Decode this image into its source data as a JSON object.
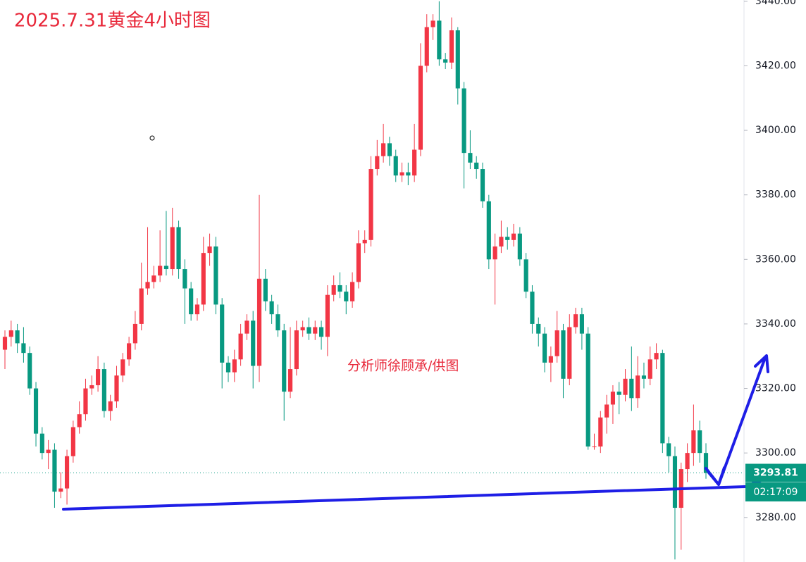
{
  "chart_data": {
    "type": "candlestick",
    "title": "2025.7.31黄金4小时图",
    "watermark": "分析师徐顾承/供图",
    "up_color": "#f23645",
    "down_color": "#089981",
    "ylim": [
      3266.2,
      3440.4
    ],
    "yticks": [
      {
        "value": 3280,
        "label": "3280.00"
      },
      {
        "value": 3300,
        "label": "3300.00"
      },
      {
        "value": 3320,
        "label": "3320.00"
      },
      {
        "value": 3340,
        "label": "3340.00"
      },
      {
        "value": 3360,
        "label": "3360.00"
      },
      {
        "value": 3380,
        "label": "3380.00"
      },
      {
        "value": 3400,
        "label": "3400.00"
      },
      {
        "value": 3420,
        "label": "3420.00"
      },
      {
        "value": 3440,
        "label": "3440.00"
      }
    ],
    "last_price": 3293.81,
    "countdown": "02:17:09",
    "candles": [
      [
        3332,
        3338,
        3326,
        3336
      ],
      [
        3336,
        3341,
        3333,
        3338
      ],
      [
        3338,
        3340,
        3331,
        3334
      ],
      [
        3334,
        3339,
        3328,
        3331
      ],
      [
        3331,
        3333,
        3318,
        3320
      ],
      [
        3320,
        3322,
        3302,
        3306
      ],
      [
        3306,
        3308,
        3298,
        3300
      ],
      [
        3300,
        3304,
        3295,
        3301
      ],
      [
        3301,
        3303,
        3283,
        3288
      ],
      [
        3288,
        3294,
        3286,
        3289
      ],
      [
        3289,
        3301,
        3284,
        3299
      ],
      [
        3299,
        3310,
        3297,
        3308
      ],
      [
        3308,
        3316,
        3306,
        3312
      ],
      [
        3312,
        3323,
        3310,
        3320
      ],
      [
        3320,
        3324,
        3318,
        3321
      ],
      [
        3321,
        3330,
        3319,
        3326
      ],
      [
        3326,
        3328,
        3311,
        3313
      ],
      [
        3313,
        3318,
        3310,
        3316
      ],
      [
        3316,
        3327,
        3314,
        3324
      ],
      [
        3324,
        3331,
        3322,
        3329
      ],
      [
        3329,
        3336,
        3327,
        3334
      ],
      [
        3334,
        3344,
        3332,
        3340
      ],
      [
        3340,
        3359,
        3338,
        3351
      ],
      [
        3351,
        3370,
        3349,
        3353
      ],
      [
        3353,
        3358,
        3351,
        3355
      ],
      [
        3355,
        3369,
        3353,
        3358
      ],
      [
        3358,
        3375,
        3355,
        3357
      ],
      [
        3357,
        3376,
        3355,
        3370
      ],
      [
        3370,
        3372,
        3354,
        3357
      ],
      [
        3357,
        3360,
        3340,
        3351
      ],
      [
        3351,
        3353,
        3341,
        3343
      ],
      [
        3343,
        3348,
        3341,
        3346
      ],
      [
        3346,
        3367,
        3344,
        3362
      ],
      [
        3362,
        3368,
        3358,
        3364
      ],
      [
        3364,
        3367,
        3343,
        3346
      ],
      [
        3346,
        3348,
        3320,
        3328
      ],
      [
        3328,
        3330,
        3322,
        3325
      ],
      [
        3325,
        3332,
        3322,
        3329
      ],
      [
        3329,
        3340,
        3327,
        3337
      ],
      [
        3337,
        3343,
        3335,
        3341
      ],
      [
        3341,
        3344,
        3320,
        3327
      ],
      [
        3327,
        3380,
        3322,
        3354
      ],
      [
        3354,
        3357,
        3344,
        3347
      ],
      [
        3347,
        3349,
        3340,
        3343
      ],
      [
        3343,
        3346,
        3336,
        3338
      ],
      [
        3338,
        3340,
        3310,
        3319
      ],
      [
        3319,
        3339,
        3317,
        3326
      ],
      [
        3326,
        3341,
        3324,
        3338
      ],
      [
        3338,
        3341,
        3336,
        3339
      ],
      [
        3339,
        3342,
        3335,
        3337
      ],
      [
        3337,
        3341,
        3335,
        3339
      ],
      [
        3339,
        3341,
        3332,
        3336
      ],
      [
        3336,
        3352,
        3330,
        3349
      ],
      [
        3349,
        3355,
        3347,
        3352
      ],
      [
        3352,
        3356,
        3348,
        3350
      ],
      [
        3350,
        3352,
        3343,
        3347
      ],
      [
        3347,
        3356,
        3345,
        3353
      ],
      [
        3353,
        3369,
        3351,
        3365
      ],
      [
        3365,
        3369,
        3362,
        3366
      ],
      [
        3366,
        3392,
        3364,
        3388
      ],
      [
        3388,
        3397,
        3386,
        3392
      ],
      [
        3392,
        3402,
        3390,
        3396
      ],
      [
        3396,
        3398,
        3389,
        3392
      ],
      [
        3392,
        3394,
        3384,
        3386
      ],
      [
        3386,
        3390,
        3384,
        3387
      ],
      [
        3387,
        3390,
        3383,
        3386
      ],
      [
        3386,
        3402,
        3384,
        3394
      ],
      [
        3394,
        3427,
        3392,
        3420
      ],
      [
        3420,
        3436,
        3418,
        3432
      ],
      [
        3432,
        3436,
        3428,
        3434
      ],
      [
        3434,
        3440,
        3420,
        3422
      ],
      [
        3422,
        3424,
        3419,
        3421
      ],
      [
        3421,
        3435,
        3419,
        3431
      ],
      [
        3431,
        3432,
        3408,
        3413
      ],
      [
        3413,
        3415,
        3382,
        3393
      ],
      [
        3393,
        3400,
        3388,
        3390
      ],
      [
        3390,
        3392,
        3385,
        3388
      ],
      [
        3388,
        3390,
        3376,
        3378
      ],
      [
        3378,
        3380,
        3357,
        3360
      ],
      [
        3360,
        3368,
        3346,
        3364
      ],
      [
        3364,
        3372,
        3362,
        3367
      ],
      [
        3367,
        3370,
        3363,
        3366
      ],
      [
        3366,
        3371,
        3364,
        3368
      ],
      [
        3368,
        3370,
        3358,
        3360
      ],
      [
        3360,
        3362,
        3348,
        3350
      ],
      [
        3350,
        3352,
        3337,
        3340
      ],
      [
        3340,
        3342,
        3333,
        3337
      ],
      [
        3337,
        3339,
        3325,
        3328
      ],
      [
        3328,
        3333,
        3322,
        3330
      ],
      [
        3330,
        3344,
        3328,
        3338
      ],
      [
        3338,
        3340,
        3317,
        3323
      ],
      [
        3323,
        3343,
        3321,
        3339
      ],
      [
        3339,
        3345,
        3337,
        3343
      ],
      [
        3343,
        3345,
        3332,
        3337
      ],
      [
        3337,
        3339,
        3301,
        3302
      ],
      [
        3302,
        3306,
        3301,
        3302
      ],
      [
        3302,
        3313,
        3300,
        3311
      ],
      [
        3311,
        3318,
        3306,
        3315
      ],
      [
        3315,
        3321,
        3309,
        3319
      ],
      [
        3319,
        3322,
        3312,
        3318
      ],
      [
        3318,
        3326,
        3316,
        3323
      ],
      [
        3323,
        3333,
        3313,
        3317
      ],
      [
        3317,
        3330,
        3314,
        3324
      ],
      [
        3324,
        3328,
        3320,
        3323
      ],
      [
        3323,
        3333,
        3321,
        3329
      ],
      [
        3329,
        3334,
        3326,
        3331
      ],
      [
        3331,
        3332,
        3300,
        3303
      ],
      [
        3303,
        3305,
        3294,
        3299
      ],
      [
        3299,
        3302,
        3267,
        3283
      ],
      [
        3283,
        3297,
        3270,
        3295
      ],
      [
        3295,
        3303,
        3291,
        3300
      ],
      [
        3300,
        3315,
        3296,
        3307
      ],
      [
        3307,
        3310,
        3297,
        3300
      ],
      [
        3300,
        3303,
        3292,
        3293.81
      ]
    ]
  }
}
